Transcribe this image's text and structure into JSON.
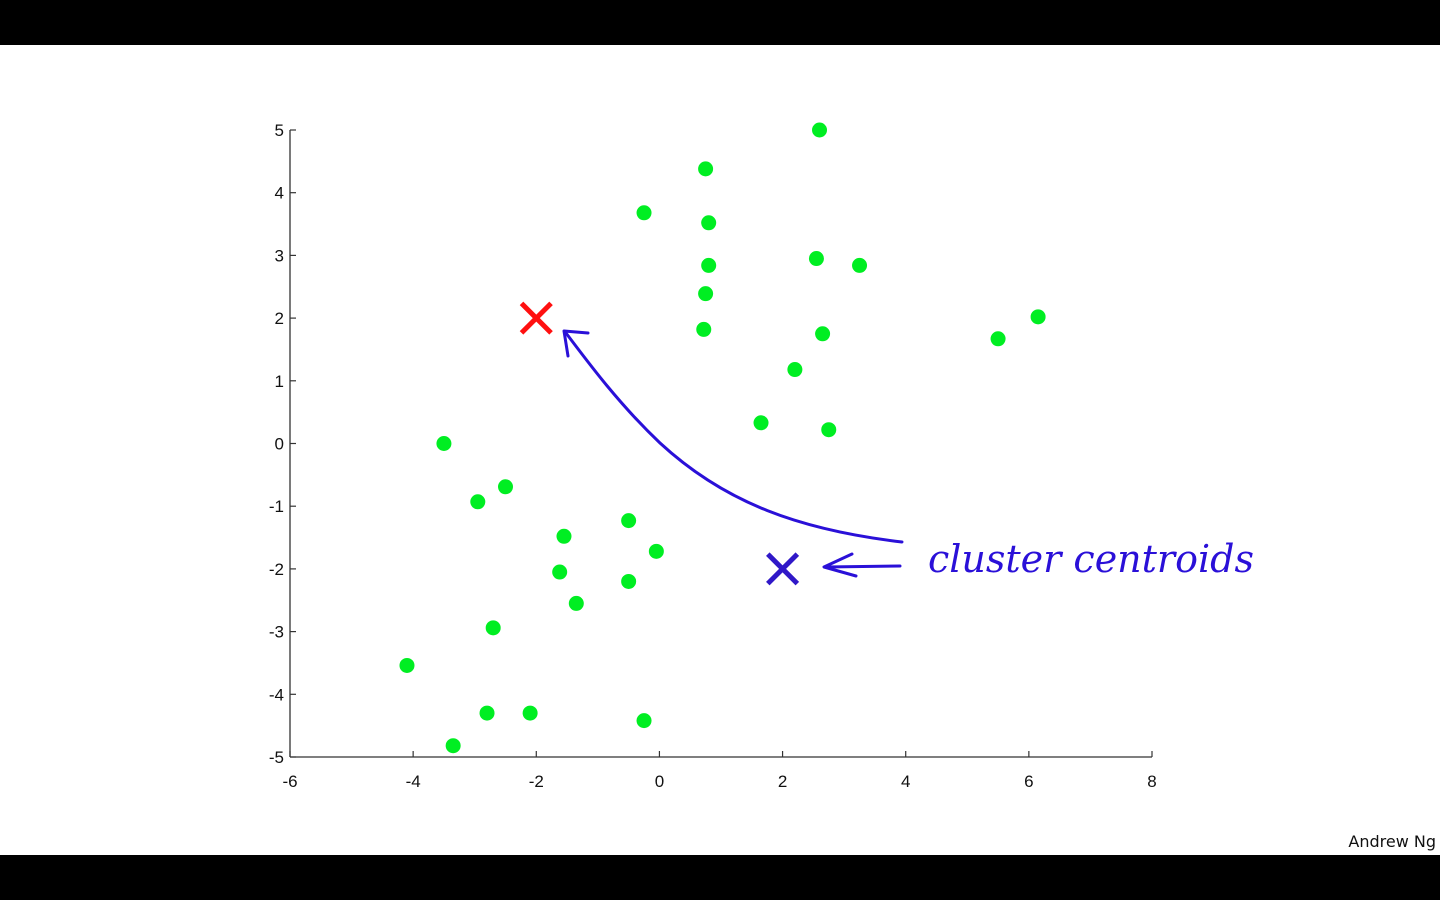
{
  "chart_data": {
    "type": "scatter",
    "title": "",
    "xlabel": "",
    "ylabel": "",
    "xlim": [
      -6,
      8
    ],
    "ylim": [
      -5,
      5
    ],
    "xticks": [
      -6,
      -4,
      -2,
      0,
      2,
      4,
      6,
      8
    ],
    "yticks": [
      -5,
      -4,
      -3,
      -2,
      -1,
      0,
      1,
      2,
      3,
      4,
      5
    ],
    "xtick_labels": [
      "-6",
      "-4",
      "-2",
      "0",
      "2",
      "4",
      "6",
      "8"
    ],
    "ytick_labels": [
      "-5",
      "-4",
      "-3",
      "-2",
      "-1",
      "0",
      "1",
      "2",
      "3",
      "4",
      "5"
    ],
    "grid": false,
    "series": [
      {
        "marker": "filled-circle",
        "color": "#00ee22",
        "points": [
          [
            2.6,
            5.0
          ],
          [
            0.75,
            4.38
          ],
          [
            -0.25,
            3.68
          ],
          [
            0.8,
            3.52
          ],
          [
            2.55,
            2.95
          ],
          [
            0.8,
            2.84
          ],
          [
            3.25,
            2.84
          ],
          [
            0.75,
            2.39
          ],
          [
            0.72,
            1.82
          ],
          [
            2.65,
            1.75
          ],
          [
            5.5,
            1.67
          ],
          [
            6.15,
            2.02
          ],
          [
            2.2,
            1.18
          ],
          [
            1.65,
            0.33
          ],
          [
            2.75,
            0.22
          ],
          [
            -3.5,
            0.0
          ],
          [
            -2.95,
            -0.93
          ],
          [
            -2.5,
            -0.69
          ],
          [
            -0.5,
            -1.23
          ],
          [
            -1.55,
            -1.48
          ],
          [
            -0.05,
            -1.72
          ],
          [
            -1.62,
            -2.05
          ],
          [
            -0.5,
            -2.2
          ],
          [
            -1.35,
            -2.55
          ],
          [
            -2.7,
            -2.94
          ],
          [
            -4.1,
            -3.54
          ],
          [
            -2.8,
            -4.3
          ],
          [
            -2.1,
            -4.3
          ],
          [
            -0.25,
            -4.42
          ],
          [
            -3.35,
            -4.82
          ]
        ]
      },
      {
        "marker": "cross",
        "color": "#ff1010",
        "points": [
          [
            -2.0,
            2.0
          ]
        ]
      },
      {
        "marker": "cross",
        "color": "#3018c8",
        "points": [
          [
            2.0,
            -2.0
          ]
        ]
      }
    ],
    "annotations": [
      {
        "text": "cluster centroids",
        "color": "#2a10d8"
      }
    ]
  },
  "credit": "Andrew Ng"
}
